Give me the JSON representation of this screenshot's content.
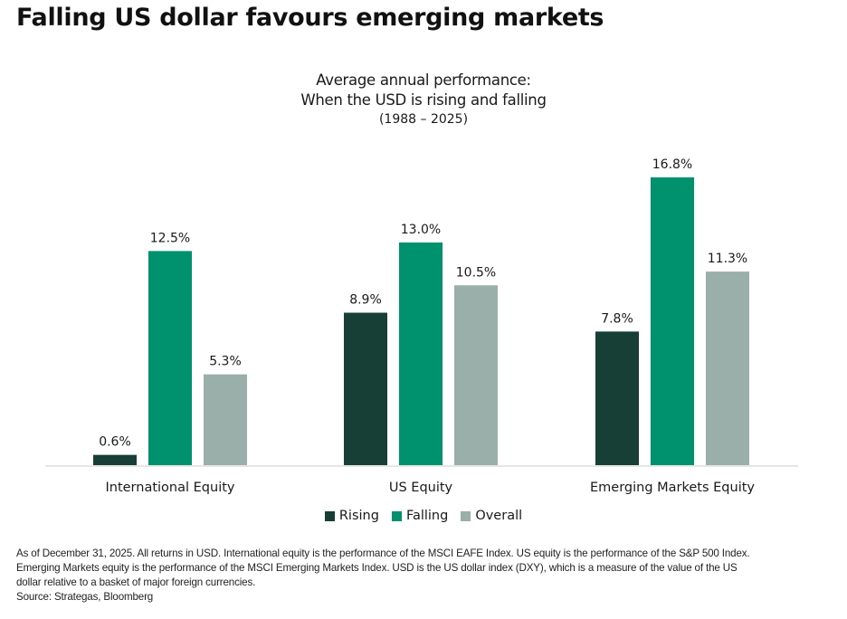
{
  "headline": "Falling US dollar favours emerging markets",
  "footnote": {
    "lines": [
      "As of December 31, 2025. All returns in USD. International equity is the performance of the MSCI EAFE Index. US equity is the performance of the S&P 500 Index.",
      "Emerging Markets equity is the performance of the MSCI Emerging Markets Index. USD is the US dollar index (DXY), which is a measure of the value of the US",
      "dollar relative to a basket of major foreign currencies.",
      "Source: Strategas, Bloomberg"
    ]
  },
  "chart_data": {
    "type": "bar",
    "title": "Average annual performance:",
    "subtitle": "When the USD is rising and falling",
    "period": "(1988 – 2025)",
    "xlabel": "",
    "ylabel": "",
    "ylim": [
      0,
      16.8
    ],
    "grid": false,
    "legend_position": "bottom-center",
    "value_format": "{v}%",
    "categories": [
      "International Equity",
      "US Equity",
      "Emerging Markets Equity"
    ],
    "series": [
      {
        "name": "Rising",
        "color": "#173f35",
        "values": [
          0.6,
          8.9,
          7.8
        ],
        "labels": [
          "0.6%",
          "8.9%",
          "7.8%"
        ]
      },
      {
        "name": "Falling",
        "color": "#00916e",
        "values": [
          12.5,
          13.0,
          16.8
        ],
        "labels": [
          "12.5%",
          "13.0%",
          "16.8%"
        ]
      },
      {
        "name": "Overall",
        "color": "#9aaeaa",
        "values": [
          5.3,
          10.5,
          11.3
        ],
        "labels": [
          "5.3%",
          "10.5%",
          "11.3%"
        ]
      }
    ]
  }
}
